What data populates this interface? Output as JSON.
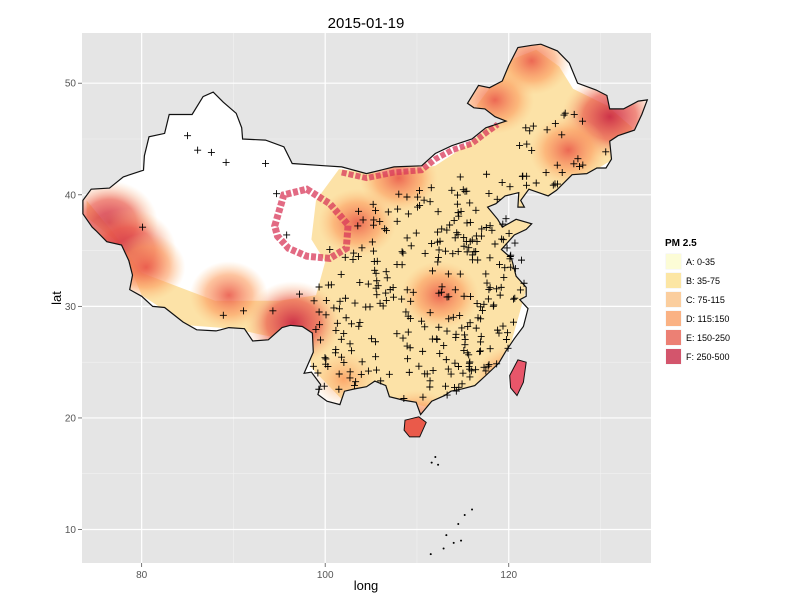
{
  "chart_data": {
    "type": "heatmap",
    "title": "2015-01-19",
    "xlabel": "long",
    "ylabel": "lat",
    "xlim": [
      73.5,
      135.5
    ],
    "ylim": [
      7,
      54.5
    ],
    "x_ticks": [
      80,
      100,
      120
    ],
    "y_ticks": [
      10,
      20,
      30,
      40,
      50
    ],
    "grid": true,
    "legend": {
      "title": "PM 2.5",
      "position": "right",
      "entries": [
        {
          "label": "A: 0-35",
          "color": "#ffffcc"
        },
        {
          "label": "B: 35-75",
          "color": "#ffe18a"
        },
        {
          "label": "C: 75-115",
          "color": "#fdc281"
        },
        {
          "label": "D: 115:150",
          "color": "#fc9c5f"
        },
        {
          "label": "E: 150-250",
          "color": "#ea5a4a"
        },
        {
          "label": "F: 250-500",
          "color": "#c8203f"
        }
      ]
    },
    "hotspots": [
      {
        "x": 76.5,
        "y": 37.5,
        "category": "F"
      },
      {
        "x": 78.5,
        "y": 35.0,
        "category": "F"
      },
      {
        "x": 80.5,
        "y": 33.5,
        "category": "E"
      },
      {
        "x": 89.5,
        "y": 31.0,
        "category": "E"
      },
      {
        "x": 96.5,
        "y": 28.5,
        "category": "F"
      },
      {
        "x": 112.5,
        "y": 31.0,
        "category": "E"
      },
      {
        "x": 110.0,
        "y": 19.5,
        "category": "E"
      },
      {
        "x": 120.5,
        "y": 23.5,
        "category": "E"
      },
      {
        "x": 102.0,
        "y": 23.5,
        "category": "D"
      },
      {
        "x": 131.0,
        "y": 47.0,
        "category": "F"
      },
      {
        "x": 126.5,
        "y": 44.0,
        "category": "E"
      },
      {
        "x": 122.5,
        "y": 52.0,
        "category": "E"
      },
      {
        "x": 118.5,
        "y": 48.5,
        "category": "E"
      },
      {
        "x": 108.0,
        "y": 41.5,
        "category": "E"
      },
      {
        "x": 103.5,
        "y": 37.5,
        "category": "E"
      }
    ]
  }
}
